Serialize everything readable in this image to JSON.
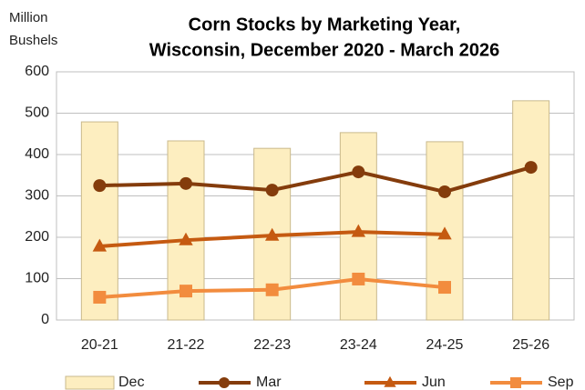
{
  "chart_data": {
    "type": "combo",
    "title": [
      "Corn Stocks by Marketing Year,",
      "Wisconsin, December 2020 - March 2026"
    ],
    "y_label": [
      "Million",
      "Bushels"
    ],
    "categories": [
      "20-21",
      "21-22",
      "22-23",
      "23-24",
      "24-25",
      "25-26"
    ],
    "series": [
      {
        "name": "Dec",
        "type": "bar",
        "color": "#fdeec0",
        "values": [
          479,
          433,
          415,
          453,
          431,
          530
        ]
      },
      {
        "name": "Mar",
        "type": "line",
        "marker": "circle",
        "color": "#843c0c",
        "values": [
          325,
          330,
          314,
          358,
          310,
          369
        ]
      },
      {
        "name": "Jun",
        "type": "line",
        "marker": "triangle",
        "color": "#c55a11",
        "values": [
          178,
          193,
          204,
          213,
          207,
          null
        ]
      },
      {
        "name": "Sep",
        "type": "line",
        "marker": "square",
        "color": "#f28c3e",
        "values": [
          55,
          70,
          73,
          99,
          79,
          null
        ]
      }
    ],
    "ylim": [
      0,
      600
    ],
    "yticks": [
      0,
      100,
      200,
      300,
      400,
      500,
      600
    ],
    "grid": true,
    "legend": "bottom"
  }
}
